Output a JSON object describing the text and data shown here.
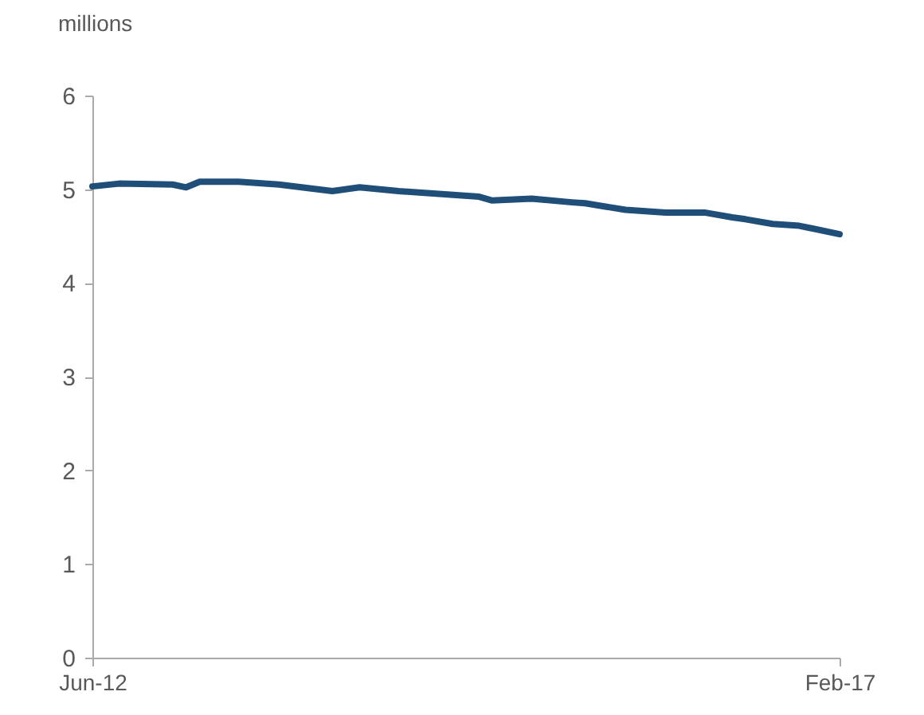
{
  "chart_data": {
    "type": "line",
    "ylabel": "millions",
    "x": [
      "2012-06",
      "2012-08",
      "2012-12",
      "2013-01",
      "2013-02",
      "2013-05",
      "2013-08",
      "2013-12",
      "2014-02",
      "2014-05",
      "2014-08",
      "2014-11",
      "2014-12",
      "2015-03",
      "2015-06",
      "2015-07",
      "2015-10",
      "2016-01",
      "2016-04",
      "2016-06",
      "2016-07",
      "2016-09",
      "2016-11",
      "2017-02"
    ],
    "series": [
      {
        "color": "#1f4e79",
        "values": [
          5.03,
          5.06,
          5.05,
          5.02,
          5.08,
          5.08,
          5.05,
          4.98,
          5.02,
          4.98,
          4.95,
          4.92,
          4.88,
          4.9,
          4.86,
          4.85,
          4.78,
          4.75,
          4.75,
          4.7,
          4.68,
          4.63,
          4.61,
          4.52
        ]
      }
    ],
    "xlim": [
      "2012-06",
      "2017-02"
    ],
    "xticks": [
      {
        "value": "2012-06",
        "label": "Jun-12"
      },
      {
        "value": "2017-02",
        "label": "Feb-17"
      }
    ],
    "ylim": [
      0,
      6
    ],
    "yticks": [
      0,
      1,
      2,
      3,
      4,
      5,
      6
    ],
    "grid": false,
    "marker": "none",
    "line_style": "solid"
  }
}
